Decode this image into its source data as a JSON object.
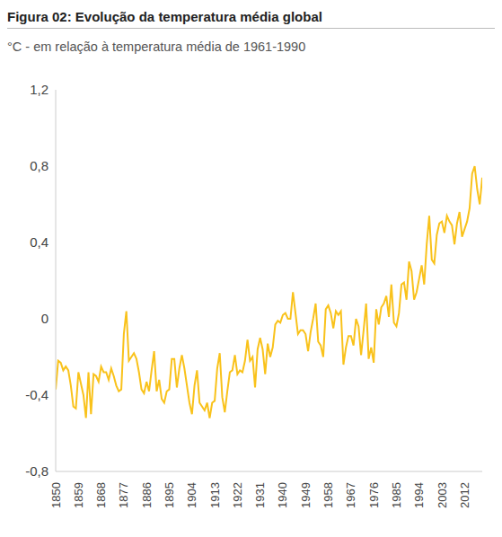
{
  "chart_data": {
    "type": "line",
    "title": "Figura 02: Evolução da temperatura média global",
    "subtitle": "°C - em relação à temperatura média de 1961-1990",
    "x": [
      1850,
      1851,
      1852,
      1853,
      1854,
      1855,
      1856,
      1857,
      1858,
      1859,
      1860,
      1861,
      1862,
      1863,
      1864,
      1865,
      1866,
      1867,
      1868,
      1869,
      1870,
      1871,
      1872,
      1873,
      1874,
      1875,
      1876,
      1877,
      1878,
      1879,
      1880,
      1881,
      1882,
      1883,
      1884,
      1885,
      1886,
      1887,
      1888,
      1889,
      1890,
      1891,
      1892,
      1893,
      1894,
      1895,
      1896,
      1897,
      1898,
      1899,
      1900,
      1901,
      1902,
      1903,
      1904,
      1905,
      1906,
      1907,
      1908,
      1909,
      1910,
      1911,
      1912,
      1913,
      1914,
      1915,
      1916,
      1917,
      1918,
      1919,
      1920,
      1921,
      1922,
      1923,
      1924,
      1925,
      1926,
      1927,
      1928,
      1929,
      1930,
      1931,
      1932,
      1933,
      1934,
      1935,
      1936,
      1937,
      1938,
      1939,
      1940,
      1941,
      1942,
      1943,
      1944,
      1945,
      1946,
      1947,
      1948,
      1949,
      1950,
      1951,
      1952,
      1953,
      1954,
      1955,
      1956,
      1957,
      1958,
      1959,
      1960,
      1961,
      1962,
      1963,
      1964,
      1965,
      1966,
      1967,
      1968,
      1969,
      1970,
      1971,
      1972,
      1973,
      1974,
      1975,
      1976,
      1977,
      1978,
      1979,
      1980,
      1981,
      1982,
      1983,
      1984,
      1985,
      1986,
      1987,
      1988,
      1989,
      1990,
      1991,
      1992,
      1993,
      1994,
      1995,
      1996,
      1997,
      1998,
      1999,
      2000,
      2001,
      2002,
      2003,
      2004,
      2005,
      2006,
      2007,
      2008,
      2009,
      2010,
      2011,
      2012,
      2013,
      2014,
      2015,
      2016,
      2017,
      2018,
      2019
    ],
    "values": [
      -0.37,
      -0.22,
      -0.23,
      -0.27,
      -0.25,
      -0.27,
      -0.35,
      -0.46,
      -0.47,
      -0.28,
      -0.34,
      -0.4,
      -0.52,
      -0.28,
      -0.5,
      -0.29,
      -0.3,
      -0.33,
      -0.25,
      -0.28,
      -0.28,
      -0.32,
      -0.26,
      -0.3,
      -0.35,
      -0.38,
      -0.37,
      -0.08,
      0.04,
      -0.22,
      -0.2,
      -0.18,
      -0.21,
      -0.28,
      -0.37,
      -0.39,
      -0.33,
      -0.38,
      -0.27,
      -0.17,
      -0.38,
      -0.32,
      -0.42,
      -0.44,
      -0.38,
      -0.37,
      -0.21,
      -0.21,
      -0.36,
      -0.26,
      -0.19,
      -0.26,
      -0.35,
      -0.44,
      -0.5,
      -0.35,
      -0.27,
      -0.44,
      -0.46,
      -0.48,
      -0.44,
      -0.52,
      -0.44,
      -0.43,
      -0.26,
      -0.18,
      -0.41,
      -0.49,
      -0.38,
      -0.28,
      -0.27,
      -0.19,
      -0.29,
      -0.27,
      -0.28,
      -0.22,
      -0.11,
      -0.22,
      -0.2,
      -0.36,
      -0.16,
      -0.1,
      -0.16,
      -0.29,
      -0.13,
      -0.2,
      -0.15,
      -0.03,
      -0.01,
      -0.02,
      0.02,
      0.03,
      0.0,
      0.0,
      0.14,
      0.03,
      -0.08,
      -0.06,
      -0.06,
      -0.08,
      -0.17,
      -0.07,
      0.0,
      0.08,
      -0.12,
      -0.14,
      -0.2,
      0.05,
      0.07,
      0.03,
      -0.05,
      0.04,
      0.02,
      0.04,
      -0.24,
      -0.15,
      -0.09,
      -0.09,
      -0.14,
      0.0,
      -0.04,
      -0.19,
      -0.06,
      0.08,
      -0.21,
      -0.15,
      -0.23,
      0.05,
      -0.03,
      0.06,
      0.08,
      0.12,
      0.01,
      0.18,
      -0.02,
      -0.04,
      0.03,
      0.18,
      0.19,
      0.1,
      0.3,
      0.25,
      0.1,
      0.14,
      0.21,
      0.28,
      0.18,
      0.39,
      0.54,
      0.31,
      0.29,
      0.44,
      0.5,
      0.51,
      0.45,
      0.54,
      0.51,
      0.49,
      0.39,
      0.5,
      0.56,
      0.43,
      0.47,
      0.51,
      0.58,
      0.76,
      0.8,
      0.68,
      0.6,
      0.74
    ],
    "color": "#f9c21b",
    "xlim": [
      1850,
      2019
    ],
    "xticks": [
      1850,
      1859,
      1868,
      1877,
      1886,
      1895,
      1904,
      1913,
      1922,
      1931,
      1940,
      1949,
      1958,
      1967,
      1976,
      1985,
      1994,
      2003,
      2012
    ],
    "ylim": [
      -0.8,
      1.2
    ],
    "yticks": [
      {
        "value": -0.8,
        "label": "-0,8"
      },
      {
        "value": -0.4,
        "label": "-0,4"
      },
      0,
      {
        "value": 0.4,
        "label": "0,4"
      },
      {
        "value": 0.8,
        "label": "0,8"
      },
      {
        "value": 1.2,
        "label": "1,2"
      }
    ],
    "grid": false
  }
}
